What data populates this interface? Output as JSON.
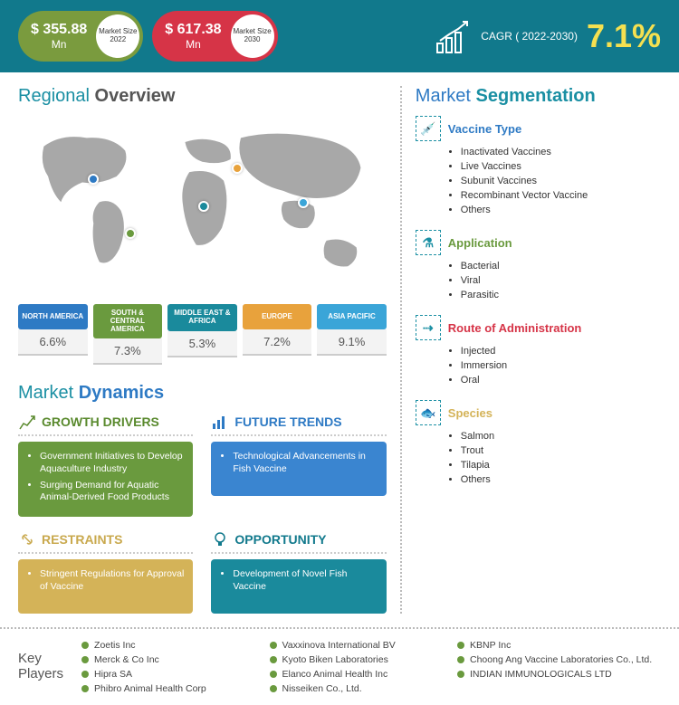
{
  "header": {
    "size2022": {
      "value": "$ 355.88",
      "unit": "Mn",
      "label": "Market Size 2022",
      "color": "#7a9b3e"
    },
    "size2030": {
      "value": "$ 617.38",
      "unit": "Mn",
      "label": "Market Size 2030",
      "color": "#d63447"
    },
    "cagr": {
      "label": "CAGR ( 2022-2030)",
      "value": "7.1%"
    }
  },
  "titles": {
    "regional_a": "Regional",
    "regional_b": "Overview",
    "dynamics_a": "Market",
    "dynamics_b": "Dynamics",
    "segment_a": "Market",
    "segment_b": "Segmentation"
  },
  "regions": [
    {
      "name": "NORTH AMERICA",
      "val": "6.6%",
      "color": "#2e7ac4",
      "dot_left": "19%",
      "dot_top": "32%"
    },
    {
      "name": "SOUTH & CENTRAL AMERICA",
      "val": "7.3%",
      "color": "#6a9a3e",
      "dot_left": "29%",
      "dot_top": "62%"
    },
    {
      "name": "MIDDLE EAST & AFRICA",
      "val": "5.3%",
      "color": "#1a8a9c",
      "dot_left": "49%",
      "dot_top": "47%"
    },
    {
      "name": "EUROPE",
      "val": "7.2%",
      "color": "#e8a23c",
      "dot_left": "58%",
      "dot_top": "26%"
    },
    {
      "name": "ASIA PACIFIC",
      "val": "9.1%",
      "color": "#3aa5d8",
      "dot_left": "76%",
      "dot_top": "45%"
    }
  ],
  "dynamics": {
    "growth": {
      "title": "GROWTH DRIVERS",
      "items": [
        "Government Initiatives to Develop Aquaculture Industry",
        "Surging Demand for Aquatic Animal-Derived Food Products"
      ]
    },
    "trends": {
      "title": "FUTURE TRENDS",
      "items": [
        "Technological Advancements in Fish Vaccine"
      ]
    },
    "restraints": {
      "title": "RESTRAINTS",
      "items": [
        "Stringent Regulations for Approval of Vaccine"
      ]
    },
    "opportunity": {
      "title": "OPPORTUNITY",
      "items": [
        "Development of Novel Fish Vaccine"
      ]
    }
  },
  "segments": {
    "vaccine": {
      "title": "Vaccine Type",
      "items": [
        "Inactivated Vaccines",
        "Live Vaccines",
        "Subunit Vaccines",
        "Recombinant Vector Vaccine",
        "Others"
      ]
    },
    "application": {
      "title": "Application",
      "items": [
        "Bacterial",
        "Viral",
        "Parasitic"
      ]
    },
    "route": {
      "title": "Route of Administration",
      "items": [
        "Injected",
        "Immersion",
        "Oral"
      ]
    },
    "species": {
      "title": "Species",
      "items": [
        "Salmon",
        "Trout",
        "Tilapia",
        "Others"
      ]
    }
  },
  "keyPlayers": {
    "label_a": "Key",
    "label_b": "Players",
    "items": [
      "Zoetis Inc",
      "Vaxxinova International BV",
      "KBNP Inc",
      "Merck & Co Inc",
      "Kyoto Biken Laboratories",
      "Choong Ang Vaccine Laboratories Co., Ltd.",
      "Hipra SA",
      "Elanco Animal Health Inc",
      "INDIAN IMMUNOLOGICALS LTD",
      "Phibro Animal Health Corp",
      "Nisseiken Co., Ltd."
    ]
  }
}
